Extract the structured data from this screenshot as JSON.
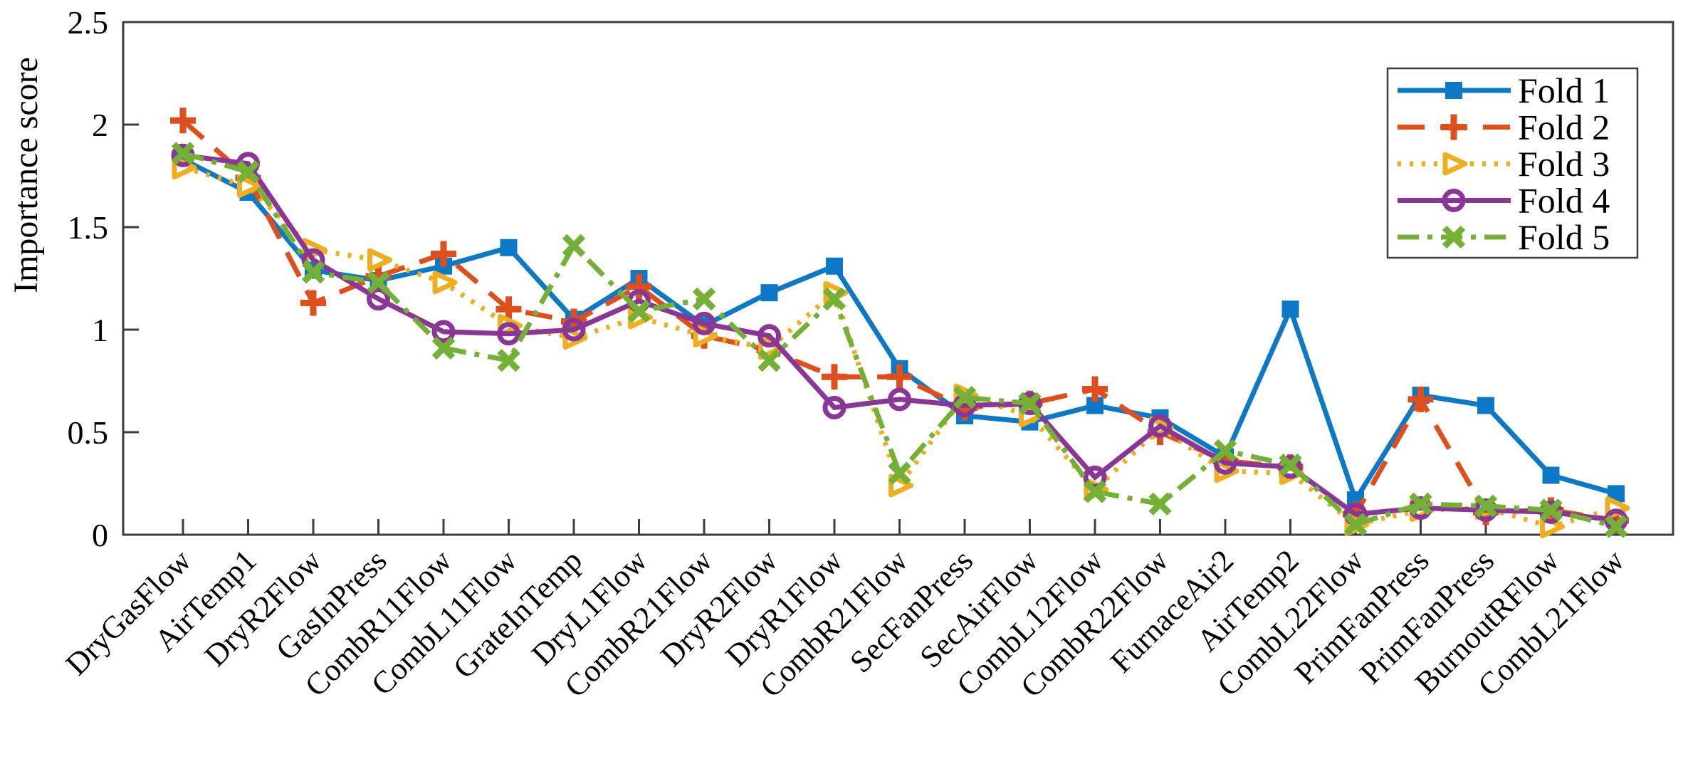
{
  "figure": {
    "background": "#ffffff",
    "axis_color": "#3d3d3d",
    "text_color": "#000000"
  },
  "chart_data": {
    "type": "line",
    "title": "",
    "xlabel": "",
    "ylabel": "Importance score",
    "ylim": [
      0,
      2.5
    ],
    "yticks": [
      "0",
      "0.5",
      "1",
      "1.5",
      "2",
      "2.5"
    ],
    "grid": false,
    "legend_position": "top-right",
    "categories": [
      "DryGasFlow",
      "AirTemp1",
      "DryR2Flow",
      "GasInPress",
      "CombR11Flow",
      "CombL11Flow",
      "GrateInTemp",
      "DryL1Flow",
      "CombR21Flow",
      "DryR2Flow",
      "DryR1Flow",
      "CombR21Flow",
      "SecFanPress",
      "SecAirFlow",
      "CombL12Flow",
      "CombR22Flow",
      "FurnaceAir2",
      "AirTemp2",
      "CombL22Flow",
      "PrimFanPress",
      "PrimFanPress",
      "BurnoutRFlow",
      "CombL21Flow"
    ],
    "series": [
      {
        "name": "Fold 1",
        "color": "#0d78c6",
        "line_style": "solid",
        "marker": "square",
        "values": [
          1.83,
          1.67,
          1.29,
          1.24,
          1.31,
          1.4,
          1.05,
          1.25,
          1.02,
          1.18,
          1.31,
          0.81,
          0.58,
          0.55,
          0.63,
          0.57,
          0.38,
          1.1,
          0.17,
          0.68,
          0.63,
          0.29,
          0.2
        ]
      },
      {
        "name": "Fold 2",
        "color": "#df4f1d",
        "line_style": "dashed",
        "marker": "plus",
        "values": [
          2.02,
          1.74,
          1.13,
          1.26,
          1.37,
          1.1,
          1.04,
          1.21,
          0.97,
          0.9,
          0.77,
          0.77,
          0.62,
          0.64,
          0.71,
          0.5,
          0.36,
          0.33,
          0.1,
          0.66,
          0.11,
          0.12,
          0.07
        ]
      },
      {
        "name": "Fold 3",
        "color": "#eeae1f",
        "line_style": "dotted",
        "marker": "triangle-right",
        "values": [
          1.79,
          1.7,
          1.39,
          1.34,
          1.23,
          1.02,
          0.96,
          1.06,
          0.97,
          0.91,
          1.18,
          0.24,
          0.68,
          0.58,
          0.22,
          0.52,
          0.31,
          0.3,
          0.05,
          0.12,
          0.13,
          0.04,
          0.13
        ]
      },
      {
        "name": "Fold 4",
        "color": "#8a3697",
        "line_style": "solid",
        "marker": "circle",
        "values": [
          1.85,
          1.81,
          1.34,
          1.15,
          0.99,
          0.98,
          1.0,
          1.14,
          1.03,
          0.97,
          0.62,
          0.66,
          0.63,
          0.64,
          0.28,
          0.53,
          0.35,
          0.33,
          0.1,
          0.13,
          0.12,
          0.11,
          0.07
        ]
      },
      {
        "name": "Fold 5",
        "color": "#73b035",
        "line_style": "dashdot",
        "marker": "x",
        "values": [
          1.86,
          1.77,
          1.28,
          1.23,
          0.91,
          0.85,
          1.41,
          1.09,
          1.15,
          0.85,
          1.15,
          0.3,
          0.67,
          0.64,
          0.21,
          0.15,
          0.41,
          0.34,
          0.05,
          0.15,
          0.14,
          0.12,
          0.04
        ]
      }
    ]
  }
}
